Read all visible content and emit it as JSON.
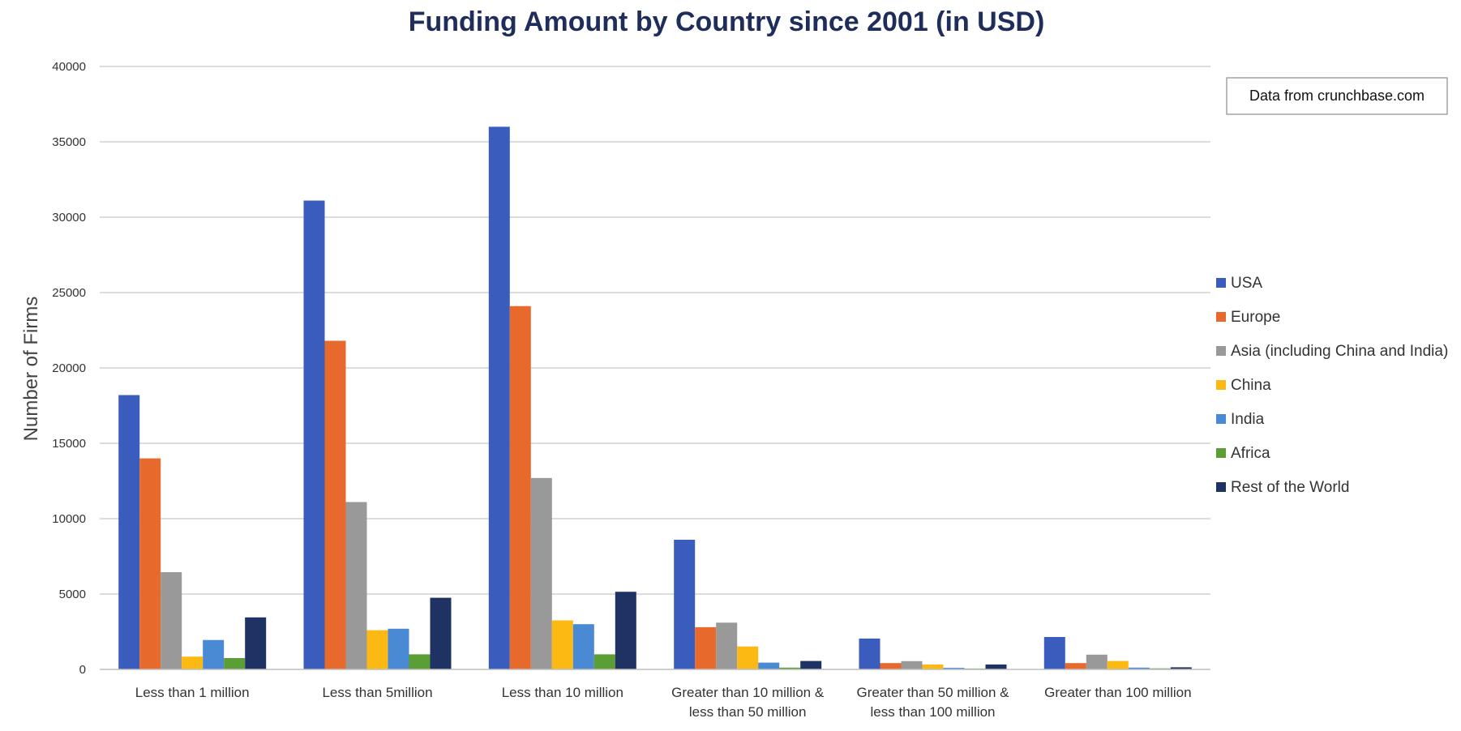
{
  "chart_data": {
    "type": "bar",
    "title": "Funding Amount by Country since 2001 (in USD)",
    "xlabel": "",
    "ylabel": "Number of Firms",
    "ylim": [
      0,
      40000
    ],
    "yticks": [
      0,
      5000,
      10000,
      15000,
      20000,
      25000,
      30000,
      35000,
      40000
    ],
    "grid": true,
    "legend_position": "right",
    "categories": [
      [
        "Less than 1 million"
      ],
      [
        "Less than 5million"
      ],
      [
        "Less than 10 million"
      ],
      [
        "Greater than 10 million &",
        "less than 50 million"
      ],
      [
        "Greater than 50 million &",
        "less than 100 million"
      ],
      [
        "Greater than 100 million"
      ]
    ],
    "series": [
      {
        "name": "USA",
        "color": "#3a5dbd",
        "values": [
          18200,
          31100,
          36000,
          8600,
          2050,
          2150
        ]
      },
      {
        "name": "Europe",
        "color": "#e8692c",
        "values": [
          14000,
          21800,
          24100,
          2800,
          420,
          420
        ]
      },
      {
        "name": "Asia (including China and India)",
        "color": "#999999",
        "values": [
          6450,
          11100,
          12700,
          3100,
          550,
          980
        ]
      },
      {
        "name": "China",
        "color": "#fdb913",
        "values": [
          850,
          2600,
          3250,
          1520,
          330,
          560
        ]
      },
      {
        "name": "India",
        "color": "#4a8ad4",
        "values": [
          1950,
          2700,
          3000,
          450,
          100,
          120
        ]
      },
      {
        "name": "Africa",
        "color": "#5b9e36",
        "values": [
          750,
          1000,
          1000,
          120,
          60,
          70
        ]
      },
      {
        "name": "Rest of the World",
        "color": "#1f3264",
        "values": [
          3450,
          4750,
          5150,
          560,
          330,
          140
        ]
      }
    ],
    "annotation": "Data from crunchbase.com"
  }
}
